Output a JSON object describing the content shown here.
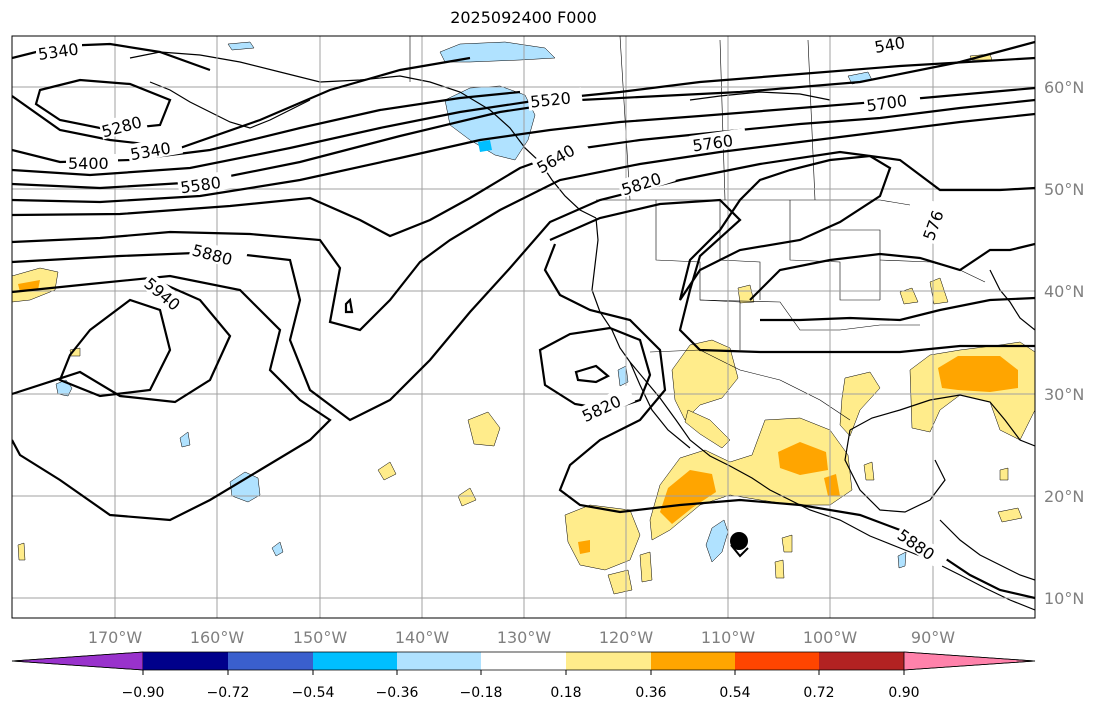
{
  "title": "2025092400 F000",
  "longitude_labels": [
    "170°W",
    "160°W",
    "150°W",
    "140°W",
    "130°W",
    "120°W",
    "110°W",
    "100°W",
    "90°W"
  ],
  "latitude_labels": [
    "60°N",
    "50°N",
    "40°N",
    "30°N",
    "20°N",
    "10°N"
  ],
  "contour_labels": [
    "5340",
    "5280",
    "5400",
    "5340",
    "5580",
    "5520",
    "5640",
    "5760",
    "5700",
    "5820",
    "5880",
    "5940",
    "5820",
    "5880",
    "540",
    "576"
  ],
  "colorbar": {
    "colors": [
      "#9932cc",
      "#00008b",
      "#3a5fcd",
      "#00bfff",
      "#b0e2ff",
      "#ffffff",
      "#ffec8b",
      "#ffa500",
      "#ff4500",
      "#b22222",
      "#ff82ab"
    ],
    "tick_labels": [
      "−0.90",
      "−0.72",
      "−0.54",
      "−0.36",
      "−0.18",
      "0.18",
      "0.36",
      "0.54",
      "0.72",
      "0.90"
    ]
  },
  "colors": {
    "grid": "#a0a0a0",
    "axis_label": "#808080",
    "contour": "#000000"
  }
}
